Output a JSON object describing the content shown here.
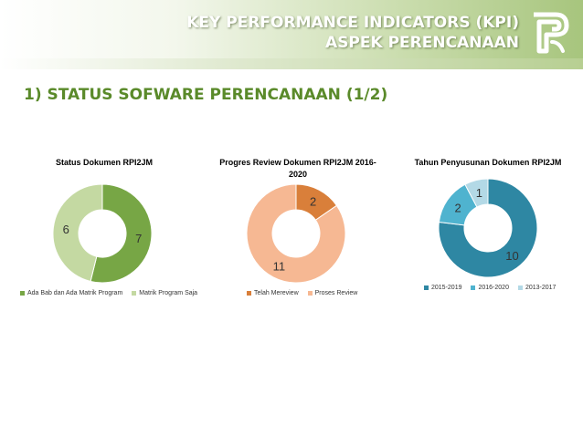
{
  "header": {
    "title_line1": "KEY PERFORMANCE INDICATORS (KPI)",
    "title_line2": "ASPEK PERENCANAAN"
  },
  "page_title": "1) STATUS SOFWARE PERENCANAAN (1/2)",
  "chart_data": [
    {
      "type": "pie",
      "donut": true,
      "title": "Status  Dokumen  RPI2JM",
      "categories": [
        "Ada Bab dan Ada Matrik Program",
        "Matrik Program Saja"
      ],
      "values": [
        7,
        6
      ],
      "colors": [
        "#77a645",
        "#c4d9a2"
      ],
      "legend": "bottom"
    },
    {
      "type": "pie",
      "donut": true,
      "title": "Progres  Review  Dokumen  RPI2JM  2016-2020",
      "categories": [
        "Telah Mereview",
        "Proses Review"
      ],
      "values": [
        2,
        11
      ],
      "colors": [
        "#d97f3a",
        "#f6b893"
      ],
      "legend": "bottom"
    },
    {
      "type": "pie",
      "donut": true,
      "title": "Tahun  Penyusunan  Dokumen  RPI2JM",
      "categories": [
        "2015-2019",
        "2016-2020",
        "2013-2017"
      ],
      "values": [
        10,
        2,
        1
      ],
      "colors": [
        "#2e87a3",
        "#4fb3cf",
        "#b3d9e6"
      ],
      "legend": "bottom"
    }
  ]
}
